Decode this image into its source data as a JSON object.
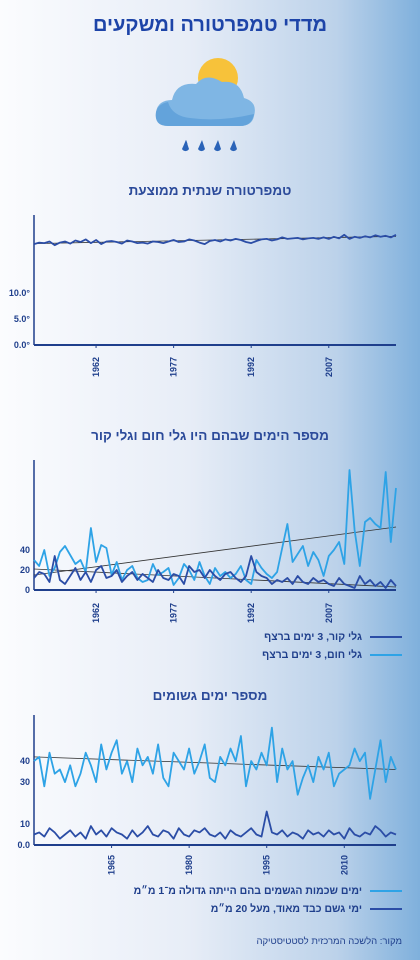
{
  "header": {
    "title": "מדדי טמפרטורה ומשקעים"
  },
  "icon": {
    "name": "partly-cloudy-rain-icon"
  },
  "colors": {
    "dark": "#2b4da6",
    "light": "#2ea3e6",
    "axis": "#1f3f8c",
    "trend": "#333333"
  },
  "source": "מקור: הלשכה המרכזית לסטטיסטיקה",
  "chart_data": [
    {
      "id": "temp",
      "type": "line",
      "title": "טמפרטורה שנתית ממוצעת",
      "xlabel": "",
      "ylabel": "",
      "x_range": [
        1950,
        2020
      ],
      "ylim": [
        0,
        25
      ],
      "y_ticks": [
        {
          "v": 0,
          "label": "0.0°"
        },
        {
          "v": 5,
          "label": "5.0°"
        },
        {
          "v": 10,
          "label": "10.0°"
        }
      ],
      "x_ticks": [
        1962,
        1977,
        1992,
        2007
      ],
      "series": [
        {
          "color_key": "dark",
          "x": [
            1950,
            1951,
            1952,
            1953,
            1954,
            1955,
            1956,
            1957,
            1958,
            1959,
            1960,
            1961,
            1962,
            1963,
            1964,
            1965,
            1966,
            1967,
            1968,
            1969,
            1970,
            1971,
            1972,
            1973,
            1974,
            1975,
            1976,
            1977,
            1978,
            1979,
            1980,
            1981,
            1982,
            1983,
            1984,
            1985,
            1986,
            1987,
            1988,
            1989,
            1990,
            1991,
            1992,
            1993,
            1994,
            1995,
            1996,
            1997,
            1998,
            1999,
            2000,
            2001,
            2002,
            2003,
            2004,
            2005,
            2006,
            2007,
            2008,
            2009,
            2010,
            2011,
            2012,
            2013,
            2014,
            2015,
            2016,
            2017,
            2018,
            2019,
            2020
          ],
          "y": [
            19.4,
            19.7,
            19.6,
            19.9,
            19.2,
            19.7,
            19.9,
            19.5,
            20.1,
            19.8,
            20.3,
            19.6,
            20.2,
            19.4,
            19.9,
            20.0,
            19.8,
            19.5,
            20.1,
            19.9,
            19.6,
            19.7,
            19.5,
            19.9,
            19.8,
            19.6,
            19.9,
            20.2,
            19.8,
            19.9,
            20.3,
            20.1,
            19.7,
            19.4,
            20.0,
            20.2,
            19.9,
            20.3,
            20.1,
            20.4,
            20.2,
            19.8,
            19.6,
            20.0,
            20.3,
            20.4,
            20.1,
            20.3,
            20.7,
            20.4,
            20.5,
            20.6,
            20.3,
            20.5,
            20.6,
            20.4,
            20.7,
            20.4,
            20.8,
            20.5,
            21.2,
            20.4,
            20.8,
            20.6,
            20.9,
            20.7,
            21.1,
            20.8,
            21.0,
            20.7,
            21.2
          ]
        },
        {
          "name": "trend",
          "color_key": "trend",
          "x": [
            1950,
            2020
          ],
          "y": [
            19.5,
            20.9
          ]
        }
      ]
    },
    {
      "id": "waves",
      "type": "line",
      "title": "מספר הימים שבהם היו גלי חום וגלי קור",
      "xlabel": "",
      "ylabel": "",
      "x_range": [
        1950,
        2020
      ],
      "ylim": [
        0,
        130
      ],
      "y_ticks": [
        {
          "v": 0,
          "label": "0"
        },
        {
          "v": 20,
          "label": "20"
        },
        {
          "v": 40,
          "label": "40"
        }
      ],
      "x_ticks": [
        1962,
        1977,
        1992,
        2007
      ],
      "legend": [
        {
          "label": "גלי קור, 3 ימים ברצף",
          "color_key": "dark"
        },
        {
          "label": "גלי חום, 3 ימים ברצף",
          "color_key": "light"
        }
      ],
      "series": [
        {
          "name": "גלי חום, 3 ימים ברצף",
          "color_key": "light",
          "x": [
            1950,
            1951,
            1952,
            1953,
            1954,
            1955,
            1956,
            1957,
            1958,
            1959,
            1960,
            1961,
            1962,
            1963,
            1964,
            1965,
            1966,
            1967,
            1968,
            1969,
            1970,
            1971,
            1972,
            1973,
            1974,
            1975,
            1976,
            1977,
            1978,
            1979,
            1980,
            1981,
            1982,
            1983,
            1984,
            1985,
            1986,
            1987,
            1988,
            1989,
            1990,
            1991,
            1992,
            1993,
            1994,
            1995,
            1996,
            1997,
            1998,
            1999,
            2000,
            2001,
            2002,
            2003,
            2004,
            2005,
            2006,
            2007,
            2008,
            2009,
            2010,
            2011,
            2012,
            2013,
            2014,
            2015,
            2016,
            2017,
            2018,
            2019,
            2020
          ],
          "y": [
            30,
            24,
            40,
            14,
            22,
            38,
            44,
            35,
            26,
            30,
            18,
            62,
            28,
            45,
            42,
            15,
            28,
            10,
            20,
            24,
            12,
            8,
            10,
            26,
            15,
            18,
            22,
            5,
            12,
            26,
            20,
            10,
            28,
            14,
            6,
            22,
            14,
            18,
            12,
            16,
            24,
            10,
            6,
            30,
            22,
            16,
            12,
            18,
            42,
            66,
            28,
            36,
            44,
            24,
            38,
            30,
            14,
            34,
            40,
            48,
            26,
            120,
            60,
            24,
            68,
            72,
            66,
            62,
            118,
            48,
            102
          ]
        },
        {
          "name": "גלי קור, 3 ימים ברצף",
          "color_key": "dark",
          "x": [
            1950,
            1951,
            1952,
            1953,
            1954,
            1955,
            1956,
            1957,
            1958,
            1959,
            1960,
            1961,
            1962,
            1963,
            1964,
            1965,
            1966,
            1967,
            1968,
            1969,
            1970,
            1971,
            1972,
            1973,
            1974,
            1975,
            1976,
            1977,
            1978,
            1979,
            1980,
            1981,
            1982,
            1983,
            1984,
            1985,
            1986,
            1987,
            1988,
            1989,
            1990,
            1991,
            1992,
            1993,
            1994,
            1995,
            1996,
            1997,
            1998,
            1999,
            2000,
            2001,
            2002,
            2003,
            2004,
            2005,
            2006,
            2007,
            2008,
            2009,
            2010,
            2011,
            2012,
            2013,
            2014,
            2015,
            2016,
            2017,
            2018,
            2019,
            2020
          ],
          "y": [
            12,
            18,
            16,
            8,
            34,
            10,
            6,
            14,
            22,
            10,
            18,
            8,
            20,
            24,
            12,
            14,
            20,
            8,
            14,
            18,
            10,
            16,
            12,
            8,
            20,
            12,
            10,
            16,
            14,
            6,
            24,
            18,
            20,
            12,
            20,
            14,
            10,
            16,
            18,
            12,
            8,
            14,
            34,
            18,
            14,
            12,
            6,
            10,
            8,
            12,
            6,
            14,
            8,
            6,
            12,
            8,
            10,
            6,
            4,
            12,
            6,
            4,
            2,
            14,
            6,
            10,
            4,
            8,
            2,
            10,
            4
          ]
        },
        {
          "name": "trend-heat",
          "color_key": "trend",
          "x": [
            1950,
            2020
          ],
          "y": [
            15,
            63
          ]
        },
        {
          "name": "trend-cold",
          "color_key": "trend",
          "x": [
            1950,
            2020
          ],
          "y": [
            21,
            3
          ]
        }
      ]
    },
    {
      "id": "rain",
      "type": "line",
      "title": "מספר ימים גשומים",
      "xlabel": "",
      "ylabel": "",
      "x_range": [
        1950,
        2020
      ],
      "ylim": [
        0,
        62
      ],
      "y_ticks": [
        {
          "v": 0,
          "label": "0.0"
        },
        {
          "v": 10,
          "label": "10"
        },
        {
          "v": 30,
          "label": "30"
        },
        {
          "v": 40,
          "label": "40"
        }
      ],
      "x_ticks": [
        1965,
        1980,
        1995,
        2010
      ],
      "legend": [
        {
          "label": "ימים שכמות הגשמים בהם הייתה גדולה מ־1 מ״מ",
          "color_key": "light"
        },
        {
          "label": "ימי גשם כבד מאוד, מעל 20 מ״מ",
          "color_key": "dark"
        }
      ],
      "series": [
        {
          "name": "ימים שכמות הגשמים בהם הייתה גדולה מ־1 מ״מ",
          "color_key": "light",
          "x": [
            1950,
            1951,
            1952,
            1953,
            1954,
            1955,
            1956,
            1957,
            1958,
            1959,
            1960,
            1961,
            1962,
            1963,
            1964,
            1965,
            1966,
            1967,
            1968,
            1969,
            1970,
            1971,
            1972,
            1973,
            1974,
            1975,
            1976,
            1977,
            1978,
            1979,
            1980,
            1981,
            1982,
            1983,
            1984,
            1985,
            1986,
            1987,
            1988,
            1989,
            1990,
            1991,
            1992,
            1993,
            1994,
            1995,
            1996,
            1997,
            1998,
            1999,
            2000,
            2001,
            2002,
            2003,
            2004,
            2005,
            2006,
            2007,
            2008,
            2009,
            2010,
            2011,
            2012,
            2013,
            2014,
            2015,
            2016,
            2017,
            2018,
            2019,
            2020
          ],
          "y": [
            40,
            42,
            28,
            44,
            34,
            36,
            30,
            38,
            28,
            34,
            44,
            38,
            30,
            48,
            36,
            44,
            50,
            34,
            40,
            30,
            46,
            38,
            42,
            34,
            48,
            32,
            28,
            44,
            40,
            36,
            46,
            34,
            40,
            48,
            32,
            30,
            42,
            38,
            46,
            40,
            52,
            28,
            40,
            36,
            44,
            38,
            56,
            30,
            46,
            36,
            40,
            24,
            32,
            38,
            30,
            42,
            36,
            44,
            28,
            34,
            36,
            38,
            46,
            40,
            44,
            22,
            36,
            50,
            30,
            42,
            36
          ]
        },
        {
          "name": "ימי גשם כבד מאוד, מעל 20 מ״מ",
          "color_key": "dark",
          "x": [
            1950,
            1951,
            1952,
            1953,
            1954,
            1955,
            1956,
            1957,
            1958,
            1959,
            1960,
            1961,
            1962,
            1963,
            1964,
            1965,
            1966,
            1967,
            1968,
            1969,
            1970,
            1971,
            1972,
            1973,
            1974,
            1975,
            1976,
            1977,
            1978,
            1979,
            1980,
            1981,
            1982,
            1983,
            1984,
            1985,
            1986,
            1987,
            1988,
            1989,
            1990,
            1991,
            1992,
            1993,
            1994,
            1995,
            1996,
            1997,
            1998,
            1999,
            2000,
            2001,
            2002,
            2003,
            2004,
            2005,
            2006,
            2007,
            2008,
            2009,
            2010,
            2011,
            2012,
            2013,
            2014,
            2015,
            2016,
            2017,
            2018,
            2019,
            2020
          ],
          "y": [
            5,
            6,
            4,
            8,
            6,
            3,
            5,
            7,
            4,
            6,
            3,
            9,
            5,
            7,
            4,
            8,
            6,
            5,
            3,
            7,
            4,
            6,
            9,
            5,
            4,
            7,
            6,
            3,
            8,
            5,
            4,
            7,
            6,
            8,
            5,
            4,
            6,
            3,
            7,
            5,
            4,
            6,
            8,
            5,
            4,
            16,
            6,
            5,
            7,
            4,
            6,
            5,
            3,
            7,
            5,
            6,
            4,
            7,
            5,
            6,
            3,
            8,
            5,
            4,
            6,
            5,
            9,
            7,
            4,
            6,
            5
          ]
        },
        {
          "name": "trend",
          "color_key": "trend",
          "x": [
            1950,
            2020
          ],
          "y": [
            42,
            36
          ]
        }
      ]
    }
  ]
}
